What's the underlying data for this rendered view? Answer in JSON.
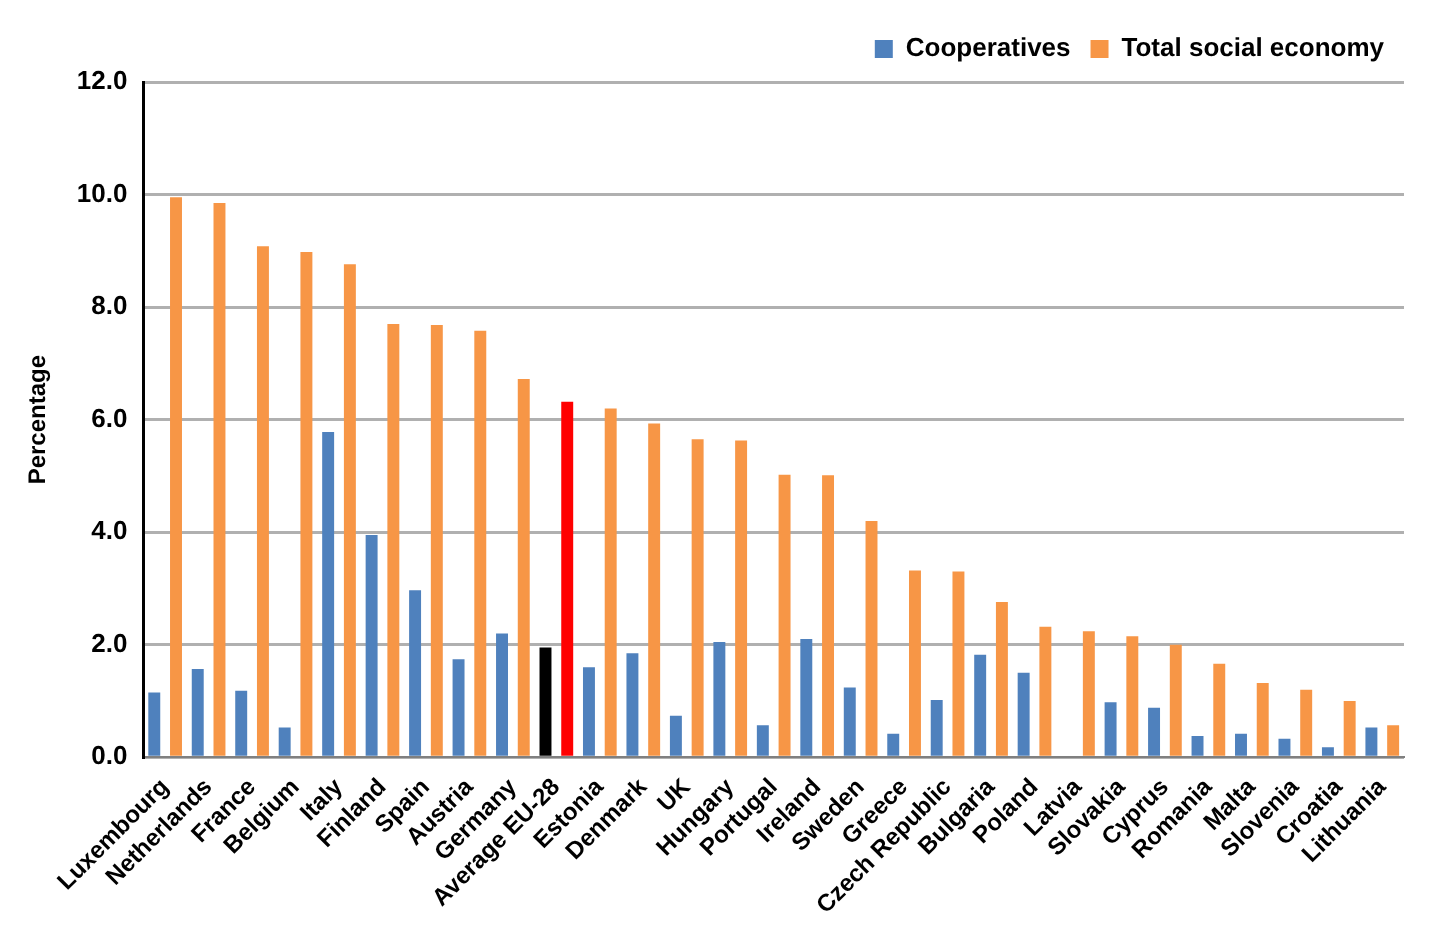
{
  "chart_data": {
    "type": "bar",
    "ylabel": "Percentage",
    "categories": [
      "Luxembourg",
      "Netherlands",
      "France",
      "Belgium",
      "Italy",
      "Finland",
      "Spain",
      "Austria",
      "Germany",
      "Average EU-28",
      "Estonia",
      "Denmark",
      "UK",
      "Hungary",
      "Portugal",
      "Ireland",
      "Sweden",
      "Greece",
      "Czech Republic",
      "Bulgaria",
      "Poland",
      "Latvia",
      "Slovakia",
      "Cyprus",
      "Romania",
      "Malta",
      "Slovenia",
      "Croatia",
      "Lithuania"
    ],
    "series": [
      {
        "name": "Cooperatives",
        "color": "#4f81bd",
        "colors": [
          "#4f81bd",
          "#4f81bd",
          "#4f81bd",
          "#4f81bd",
          "#4f81bd",
          "#4f81bd",
          "#4f81bd",
          "#4f81bd",
          "#4f81bd",
          "#000000",
          "#4f81bd",
          "#4f81bd",
          "#4f81bd",
          "#4f81bd",
          "#4f81bd",
          "#4f81bd",
          "#4f81bd",
          "#4f81bd",
          "#4f81bd",
          "#4f81bd",
          "#4f81bd",
          "#4f81bd",
          "#4f81bd",
          "#4f81bd",
          "#4f81bd",
          "#4f81bd",
          "#4f81bd",
          "#4f81bd",
          "#4f81bd"
        ],
        "values": [
          1.15,
          1.57,
          1.18,
          0.53,
          5.78,
          3.95,
          2.97,
          1.74,
          2.2,
          1.95,
          1.6,
          1.85,
          0.74,
          2.05,
          0.57,
          2.1,
          1.24,
          0.42,
          1.02,
          1.82,
          1.5,
          null,
          0.98,
          0.88,
          0.38,
          0.42,
          0.33,
          0.18,
          0.53
        ]
      },
      {
        "name": "Total social economy",
        "color": "#f79646",
        "colors": [
          "#f79646",
          "#f79646",
          "#f79646",
          "#f79646",
          "#f79646",
          "#f79646",
          "#f79646",
          "#f79646",
          "#f79646",
          "#ff0000",
          "#f79646",
          "#f79646",
          "#f79646",
          "#f79646",
          "#f79646",
          "#f79646",
          "#f79646",
          "#f79646",
          "#f79646",
          "#f79646",
          "#f79646",
          "#f79646",
          "#f79646",
          "#f79646",
          "#f79646",
          "#f79646",
          "#f79646",
          "#f79646",
          "#f79646"
        ],
        "values": [
          9.95,
          9.85,
          9.08,
          8.98,
          8.76,
          7.7,
          7.68,
          7.58,
          6.72,
          6.32,
          6.2,
          5.93,
          5.65,
          5.63,
          5.02,
          5.01,
          4.2,
          3.32,
          3.3,
          2.76,
          2.32,
          2.24,
          2.15,
          2.0,
          1.66,
          1.32,
          1.2,
          1.0,
          0.57
        ]
      }
    ],
    "ylim": [
      0,
      12
    ],
    "yticks": [
      {
        "value": 0,
        "label": "0.0"
      },
      {
        "value": 2,
        "label": "2.0"
      },
      {
        "value": 4,
        "label": "4.0"
      },
      {
        "value": 6,
        "label": "6.0"
      },
      {
        "value": 8,
        "label": "8.0"
      },
      {
        "value": 10,
        "label": "10.0"
      },
      {
        "value": 12,
        "label": "12.0"
      }
    ],
    "grid": "y",
    "legend": "top right"
  }
}
